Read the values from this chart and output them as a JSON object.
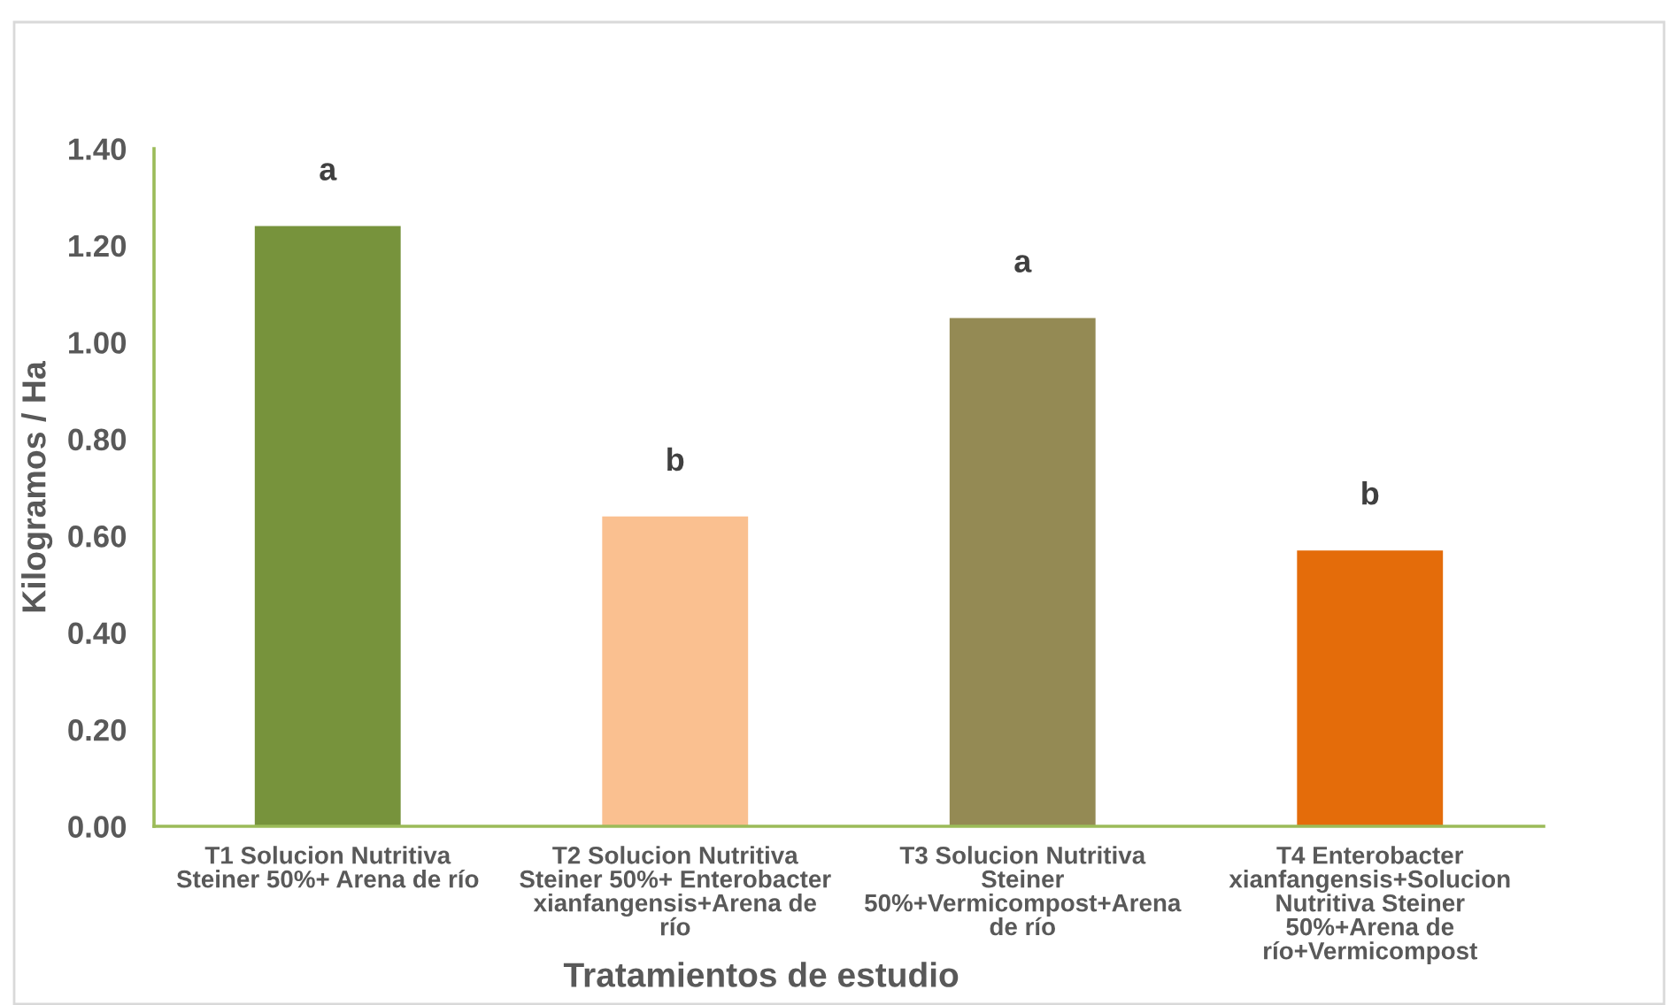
{
  "chart_data": {
    "type": "bar",
    "xlabel": "Tratamientos de estudio",
    "ylabel": "Kilogramos / Ha",
    "categories": [
      "T1 Solucion Nutritiva Steiner 50%+ Arena de río",
      "T2 Solucion Nutritiva Steiner 50%+ Enterobacter xianfangensis+Arena de río",
      "T3 Solucion Nutritiva Steiner 50%+Vermicompost+Arena de río",
      "T4 Enterobacter xianfangensis+Solucion Nutritiva Steiner 50%+Arena de río+Vermicompost"
    ],
    "values": [
      1.24,
      0.64,
      1.05,
      0.57
    ],
    "colors": [
      "#77933c",
      "#fac090",
      "#948a54",
      "#e46c0a"
    ],
    "ylim": [
      0,
      1.4
    ],
    "yticks": [
      {
        "value": 0,
        "label": "0.00"
      },
      {
        "value": 0.2,
        "label": "0.20"
      },
      {
        "value": 0.4,
        "label": "0.40"
      },
      {
        "value": 0.6,
        "label": "0.60"
      },
      {
        "value": 0.8,
        "label": "0.80"
      },
      {
        "value": 1.0,
        "label": "1.00"
      },
      {
        "value": 1.2,
        "label": "1.20"
      },
      {
        "value": 1.4,
        "label": "1.40"
      }
    ],
    "grid": false,
    "annotations": [
      {
        "text": "a",
        "x": "T1 Solucion Nutritiva Steiner 50%+ Arena de río",
        "y": 1.24
      },
      {
        "text": "b",
        "x": "T2 Solucion Nutritiva Steiner 50%+ Enterobacter xianfangensis+Arena de río",
        "y": 0.64
      },
      {
        "text": "a",
        "x": "T3 Solucion Nutritiva Steiner 50%+Vermicompost+Arena de río",
        "y": 1.05
      },
      {
        "text": "b",
        "x": "T4 Enterobacter xianfangensis+Solucion Nutritiva Steiner 50%+Arena de río+Vermicompost",
        "y": 0.57
      }
    ]
  }
}
